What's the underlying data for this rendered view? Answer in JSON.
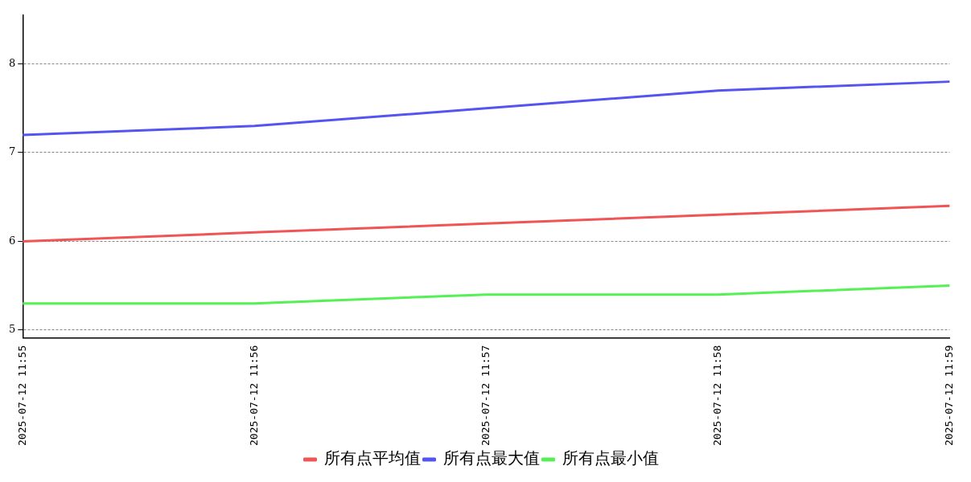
{
  "chart_data": {
    "type": "line",
    "categories": [
      "2025-07-12 11:55",
      "2025-07-12 11:56",
      "2025-07-12 11:57",
      "2025-07-12 11:58",
      "2025-07-12 11:59"
    ],
    "series": [
      {
        "name": "所有点平均值",
        "color": "#f05454",
        "values": [
          6.0,
          6.1,
          6.2,
          6.3,
          6.4
        ]
      },
      {
        "name": "所有点最大值",
        "color": "#5454f0",
        "values": [
          7.2,
          7.3,
          7.5,
          7.7,
          7.8
        ]
      },
      {
        "name": "所有点最小值",
        "color": "#54f054",
        "values": [
          5.3,
          5.3,
          5.4,
          5.4,
          5.5
        ]
      }
    ],
    "ylim": [
      4.91,
      8.55
    ],
    "yticks": [
      5,
      6,
      7,
      8
    ],
    "grid": "y",
    "legend": "bottom",
    "marker": "none",
    "line_style": "solid"
  }
}
